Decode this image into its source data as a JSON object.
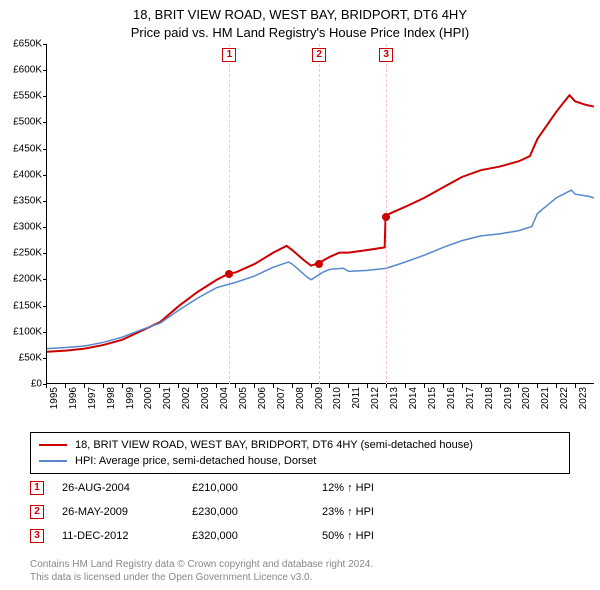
{
  "title": {
    "line1": "18, BRIT VIEW ROAD, WEST BAY, BRIDPORT, DT6 4HY",
    "line2": "Price paid vs. HM Land Registry's House Price Index (HPI)"
  },
  "chart": {
    "type": "line",
    "background_color": "#ffffff",
    "grid_dash_color": "#f7c6c6",
    "axis_color": "#000000",
    "ylim": [
      0,
      650000
    ],
    "ytick_step": 50000,
    "y_ticks": [
      "£0",
      "£50K",
      "£100K",
      "£150K",
      "£200K",
      "£250K",
      "£300K",
      "£350K",
      "£400K",
      "£450K",
      "£500K",
      "£550K",
      "£600K",
      "£650K"
    ],
    "xlim": [
      1995,
      2024
    ],
    "x_ticks": [
      "1995",
      "1996",
      "1997",
      "1998",
      "1999",
      "2000",
      "2001",
      "2002",
      "2003",
      "2004",
      "2005",
      "2006",
      "2007",
      "2008",
      "2009",
      "2010",
      "2011",
      "2012",
      "2013",
      "2014",
      "2015",
      "2016",
      "2017",
      "2018",
      "2019",
      "2020",
      "2021",
      "2022",
      "2023"
    ],
    "label_fontsize": 10,
    "series": [
      {
        "name": "property",
        "color": "#cc0000",
        "width": 2,
        "legend": "18, BRIT VIEW ROAD, WEST BAY, BRIDPORT, DT6 4HY (semi-detached house)",
        "points": [
          [
            1995,
            60000
          ],
          [
            1996,
            62000
          ],
          [
            1997,
            66000
          ],
          [
            1998,
            73000
          ],
          [
            1999,
            83000
          ],
          [
            2000,
            100000
          ],
          [
            2001,
            117000
          ],
          [
            2002,
            148000
          ],
          [
            2003,
            175000
          ],
          [
            2004,
            198000
          ],
          [
            2004.65,
            210000
          ],
          [
            2005,
            212000
          ],
          [
            2006,
            228000
          ],
          [
            2007,
            250000
          ],
          [
            2007.7,
            263000
          ],
          [
            2008,
            255000
          ],
          [
            2008.6,
            236000
          ],
          [
            2009,
            225000
          ],
          [
            2009.4,
            230000
          ],
          [
            2010,
            242000
          ],
          [
            2010.5,
            250000
          ],
          [
            2011,
            250000
          ],
          [
            2012,
            255000
          ],
          [
            2012.9,
            260000
          ],
          [
            2012.95,
            320000
          ],
          [
            2013,
            322000
          ],
          [
            2014,
            338000
          ],
          [
            2015,
            355000
          ],
          [
            2016,
            375000
          ],
          [
            2017,
            395000
          ],
          [
            2018,
            408000
          ],
          [
            2019,
            415000
          ],
          [
            2020,
            425000
          ],
          [
            2020.6,
            435000
          ],
          [
            2021,
            468000
          ],
          [
            2022,
            520000
          ],
          [
            2022.7,
            552000
          ],
          [
            2023,
            540000
          ],
          [
            2023.6,
            533000
          ],
          [
            2024,
            530000
          ]
        ]
      },
      {
        "name": "hpi",
        "color": "#5588cc",
        "width": 1.5,
        "legend": "HPI: Average price, semi-detached house, Dorset",
        "points": [
          [
            1995,
            66000
          ],
          [
            1996,
            68000
          ],
          [
            1997,
            71000
          ],
          [
            1998,
            78000
          ],
          [
            1999,
            88000
          ],
          [
            2000,
            102000
          ],
          [
            2001,
            115000
          ],
          [
            2002,
            140000
          ],
          [
            2003,
            163000
          ],
          [
            2004,
            183000
          ],
          [
            2005,
            193000
          ],
          [
            2006,
            205000
          ],
          [
            2007,
            222000
          ],
          [
            2007.8,
            232000
          ],
          [
            2008,
            228000
          ],
          [
            2008.8,
            203000
          ],
          [
            2009,
            198000
          ],
          [
            2009.6,
            212000
          ],
          [
            2010,
            218000
          ],
          [
            2010.7,
            220000
          ],
          [
            2011,
            214000
          ],
          [
            2012,
            216000
          ],
          [
            2013,
            220000
          ],
          [
            2014,
            232000
          ],
          [
            2015,
            245000
          ],
          [
            2016,
            260000
          ],
          [
            2017,
            273000
          ],
          [
            2018,
            282000
          ],
          [
            2019,
            286000
          ],
          [
            2020,
            292000
          ],
          [
            2020.7,
            300000
          ],
          [
            2021,
            325000
          ],
          [
            2022,
            355000
          ],
          [
            2022.8,
            370000
          ],
          [
            2023,
            362000
          ],
          [
            2023.7,
            358000
          ],
          [
            2024,
            355000
          ]
        ]
      }
    ],
    "event_markers": [
      {
        "num": "1",
        "x": 2004.65,
        "y": 210000,
        "color": "#cc0000"
      },
      {
        "num": "2",
        "x": 2009.4,
        "y": 230000,
        "color": "#cc0000"
      },
      {
        "num": "3",
        "x": 2012.95,
        "y": 320000,
        "color": "#cc0000"
      }
    ]
  },
  "events": [
    {
      "num": "1",
      "date": "26-AUG-2004",
      "price": "£210,000",
      "delta": "12% ↑ HPI"
    },
    {
      "num": "2",
      "date": "26-MAY-2009",
      "price": "£230,000",
      "delta": "23% ↑ HPI"
    },
    {
      "num": "3",
      "date": "11-DEC-2012",
      "price": "£320,000",
      "delta": "50% ↑ HPI"
    }
  ],
  "footer": {
    "line1": "Contains HM Land Registry data © Crown copyright and database right 2024.",
    "line2": "This data is licensed under the Open Government Licence v3.0."
  }
}
